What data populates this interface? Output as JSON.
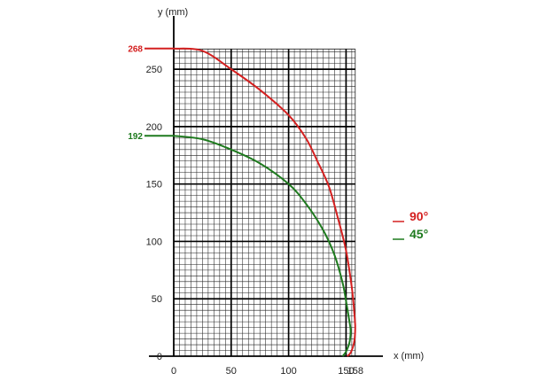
{
  "colors": {
    "series_90": "#d42020",
    "series_45": "#1e7a1e",
    "grid": "#222222",
    "axis": "#000000"
  },
  "chart_data": {
    "type": "line",
    "xlabel": "x (mm)",
    "ylabel": "y (mm)",
    "xlim": [
      0,
      158
    ],
    "ylim": [
      0,
      268
    ],
    "grid": true,
    "x_ticks": [
      0,
      50,
      100,
      150,
      158
    ],
    "x_tick_labels": [
      "0",
      "50",
      "100",
      "150",
      "158"
    ],
    "y_ticks": [
      0,
      50,
      100,
      150,
      200,
      250
    ],
    "y_tick_labels": [
      "0",
      "50",
      "100",
      "150",
      "200",
      "250"
    ],
    "legend_position": "right",
    "series": [
      {
        "name": "90°",
        "color": "#d42020",
        "start_label": "268",
        "points": [
          [
            0,
            268
          ],
          [
            25,
            266
          ],
          [
            50,
            250
          ],
          [
            75,
            232
          ],
          [
            100,
            210
          ],
          [
            115,
            190
          ],
          [
            125,
            170
          ],
          [
            135,
            148
          ],
          [
            143,
            120
          ],
          [
            150,
            92
          ],
          [
            155,
            60
          ],
          [
            157,
            40
          ],
          [
            158,
            25
          ],
          [
            157,
            12
          ],
          [
            154,
            3
          ],
          [
            151,
            0
          ]
        ]
      },
      {
        "name": "45°",
        "color": "#1e7a1e",
        "start_label": "192",
        "points": [
          [
            0,
            192
          ],
          [
            25,
            189
          ],
          [
            50,
            180
          ],
          [
            75,
            168
          ],
          [
            100,
            150
          ],
          [
            115,
            133
          ],
          [
            130,
            110
          ],
          [
            140,
            88
          ],
          [
            147,
            64
          ],
          [
            150,
            48
          ],
          [
            153,
            30
          ],
          [
            154,
            22
          ],
          [
            153,
            12
          ],
          [
            150,
            4
          ],
          [
            147,
            0
          ]
        ]
      }
    ]
  }
}
